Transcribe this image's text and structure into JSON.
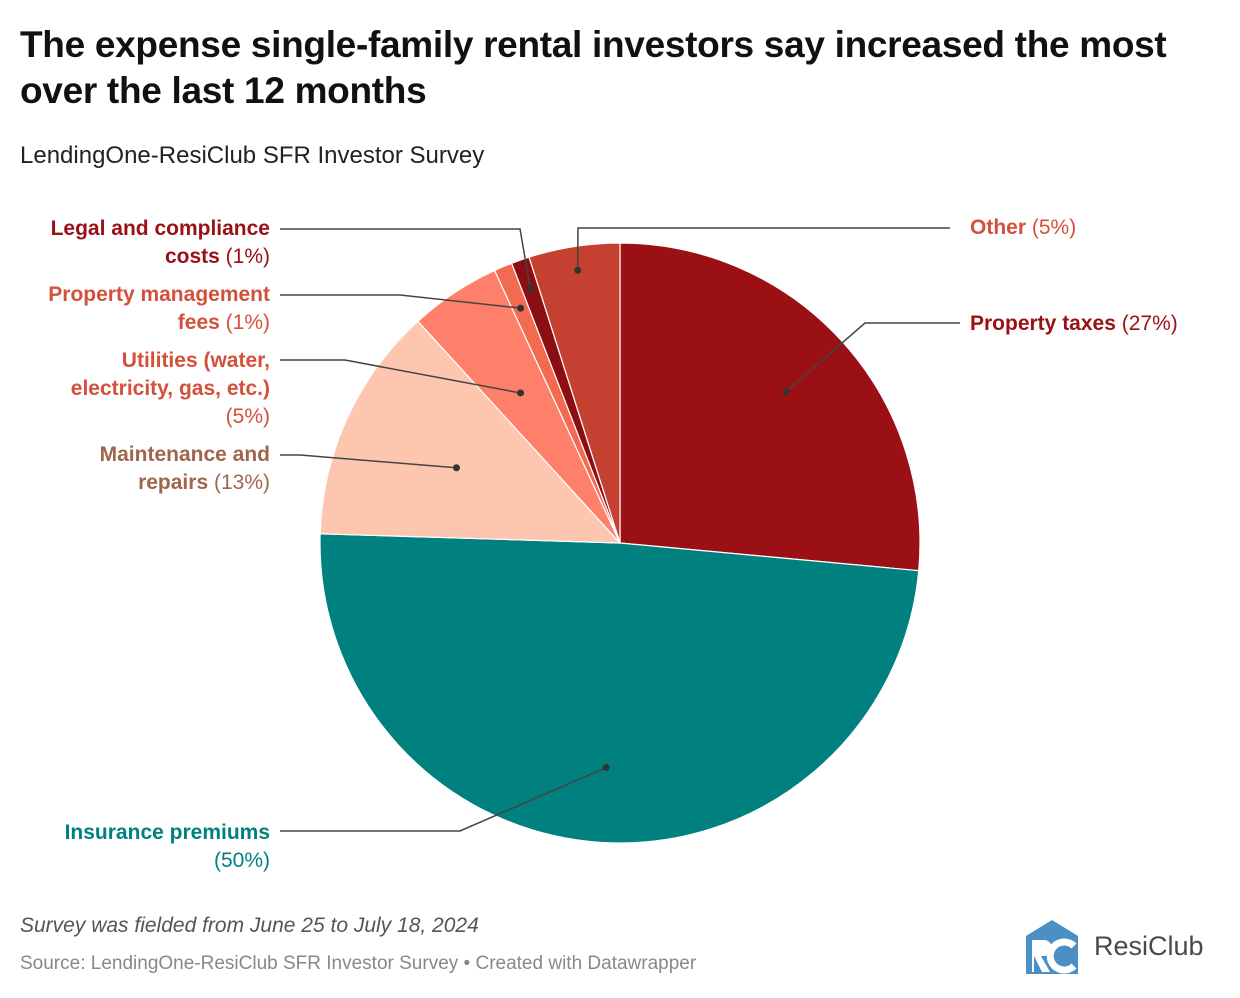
{
  "header": {
    "title": "The expense single-family rental investors say increased the most over the last 12 months",
    "subtitle": "LendingOne-ResiClub SFR Investor Survey"
  },
  "chart_data": {
    "type": "pie",
    "start": "top, clockwise",
    "slices": [
      {
        "label": "Property taxes",
        "pct_label": "(27%)",
        "value": 27,
        "color": "#9a1014",
        "label_color": "#9a1014"
      },
      {
        "label": "Insurance premiums",
        "pct_label": "(50%)",
        "value": 50,
        "color": "#00807f",
        "label_color": "#00807f"
      },
      {
        "label": "Maintenance and repairs",
        "pct_label": "(13%)",
        "value": 13,
        "color": "#fec6ae",
        "label_color": "#a0654c"
      },
      {
        "label": "Utilities (water, electricity, gas, etc.)",
        "pct_label": "(5%)",
        "value": 5,
        "color": "#fe806b",
        "label_color": "#d4503b"
      },
      {
        "label": "Property management fees",
        "pct_label": "(1%)",
        "value": 1,
        "color": "#f26a50",
        "label_color": "#d4503b"
      },
      {
        "label": "Legal and compliance costs",
        "pct_label": "(1%)",
        "value": 1,
        "color": "#8b0f12",
        "label_color": "#9a1014"
      },
      {
        "label": "Other",
        "pct_label": "(5%)",
        "value": 5,
        "color": "#c44132",
        "label_color": "#d4503b"
      }
    ]
  },
  "footer": {
    "note": "Survey was fielded from June 25 to July 18, 2024",
    "source": "Source: LendingOne-ResiClub SFR Investor Survey • Created with Datawrapper",
    "logo_text": "ResiClub",
    "logo_mark": "RC",
    "logo_color": "#4a90c2"
  }
}
